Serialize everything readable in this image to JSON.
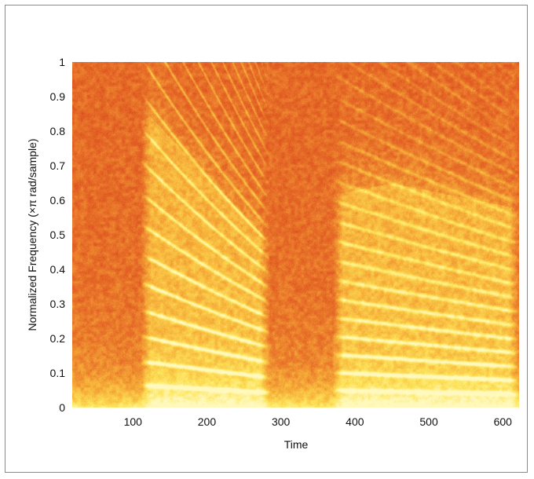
{
  "chart_data": {
    "type": "heatmap",
    "title": "",
    "xlabel": "Time",
    "ylabel": "Normalized Frequency  (×π rad/sample)",
    "xlim": [
      18,
      622
    ],
    "ylim": [
      0,
      1
    ],
    "xticks": [
      100,
      200,
      300,
      400,
      500,
      600
    ],
    "yticks": [
      0,
      0.1,
      0.2,
      0.3,
      0.4,
      0.5,
      0.6,
      0.7,
      0.8,
      0.9,
      1
    ],
    "grid": false,
    "colormap": "autumn",
    "colormap_colors": [
      "#d8431c",
      "#e9742a",
      "#f7b13a",
      "#fde45a",
      "#fff9bd"
    ],
    "segments": [
      {
        "start": 120,
        "end": 275,
        "f0_start": 0.063,
        "f0_end": 0.045
      },
      {
        "start": 380,
        "end": 612,
        "f0_start": 0.05,
        "f0_end": 0.04
      }
    ]
  }
}
